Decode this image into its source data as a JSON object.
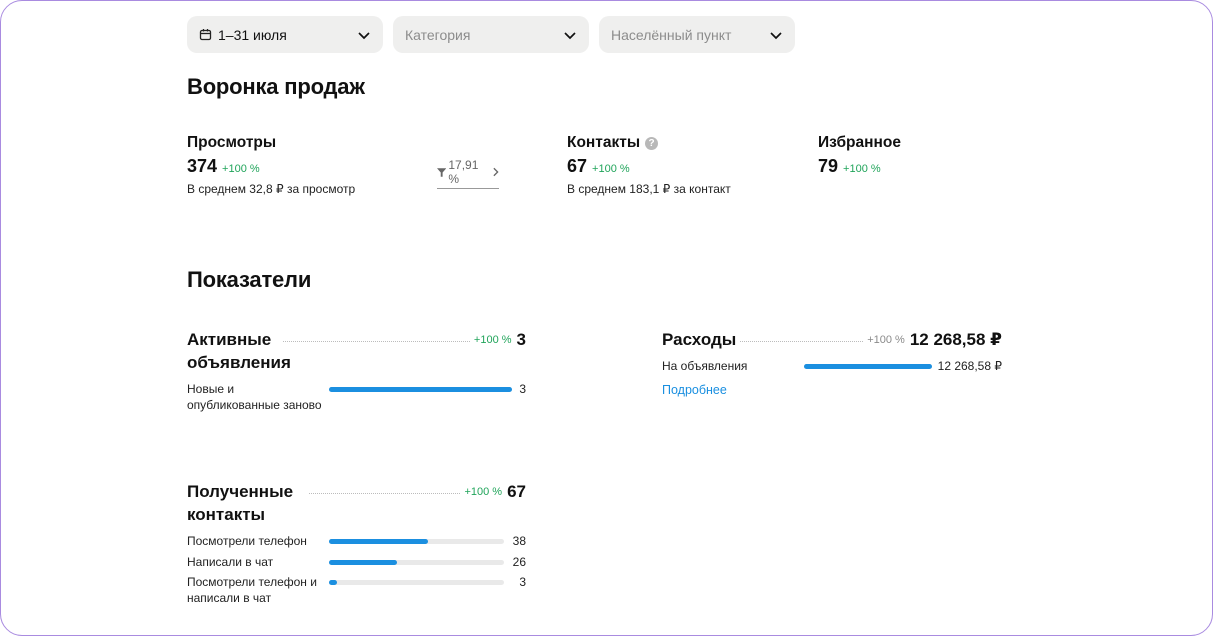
{
  "filters": {
    "date": "1–31 июля",
    "category_placeholder": "Категория",
    "city_placeholder": "Населённый пункт"
  },
  "funnel": {
    "title": "Воронка продаж",
    "views": {
      "title": "Просмотры",
      "value": "374",
      "delta": "+100 %",
      "sub": "В среднем 32,8 ₽ за просмотр"
    },
    "conversion": "17,91 %",
    "contacts": {
      "title": "Контакты",
      "value": "67",
      "delta": "+100 %",
      "sub": "В среднем 183,1 ₽ за контакт"
    },
    "favorites": {
      "title": "Избранное",
      "value": "79",
      "delta": "+100 %"
    }
  },
  "metrics": {
    "title": "Показатели",
    "active_ads": {
      "title": "Активные объявления",
      "delta": "+100 %",
      "value": "3",
      "rows": [
        {
          "label": "Новые и опубликованные заново",
          "value": "3",
          "fraction": 1.0
        }
      ]
    },
    "expenses": {
      "title": "Расходы",
      "delta": "+100 %",
      "value": "12 268,58 ₽",
      "rows": [
        {
          "label": "На объявления",
          "value": "12 268,58 ₽",
          "fraction": 1.0
        }
      ],
      "link": "Подробнее"
    },
    "contacts": {
      "title": "Полученные контакты",
      "delta": "+100 %",
      "value": "67",
      "rows": [
        {
          "label": "Посмотрели телефон",
          "value": "38",
          "fraction": 0.567
        },
        {
          "label": "Написали в чат",
          "value": "26",
          "fraction": 0.388
        },
        {
          "label": "Посмотрели телефон и написали в чат",
          "value": "3",
          "fraction": 0.045
        }
      ]
    }
  },
  "colors": {
    "accent": "#1b8fe0",
    "positive": "#20a45a",
    "filter_bg": "#efefee",
    "frame": "#a98be0"
  },
  "icons": {
    "calendar": "calendar-icon",
    "chevron": "chevron-down-icon",
    "filter": "funnel-icon",
    "help": "question-icon"
  }
}
